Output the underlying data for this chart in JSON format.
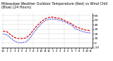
{
  "title": "Milwaukee Weather Outdoor Temperature (Red) vs Wind Chill (Blue) (24 Hours)",
  "title_fontsize": 3.5,
  "bg_color": "#ffffff",
  "grid_color": "#aaaaaa",
  "red_color": "#dd0000",
  "blue_color": "#0000dd",
  "hours": [
    0,
    1,
    2,
    3,
    4,
    5,
    6,
    7,
    8,
    9,
    10,
    11,
    12,
    13,
    14,
    15,
    16,
    17,
    18,
    19,
    20,
    21,
    22,
    23
  ],
  "temp_red": [
    26,
    25,
    18,
    12,
    10,
    10,
    11,
    18,
    29,
    39,
    47,
    53,
    56,
    57,
    55,
    54,
    50,
    46,
    42,
    36,
    33,
    30,
    28,
    27
  ],
  "wind_chill_blue": [
    20,
    18,
    11,
    4,
    1,
    1,
    2,
    10,
    22,
    33,
    42,
    49,
    52,
    53,
    52,
    50,
    47,
    43,
    39,
    31,
    28,
    25,
    23,
    22
  ],
  "ylim_min": -10,
  "ylim_max": 65,
  "yticks": [
    -10,
    0,
    10,
    20,
    30,
    40,
    50,
    60
  ],
  "ytick_labels": [
    "-10",
    "0",
    "10",
    "20",
    "30",
    "40",
    "50",
    "60"
  ],
  "ytick_fontsize": 3.2,
  "xtick_fontsize": 2.8,
  "xlabel_hours": [
    "12",
    "1",
    "2",
    "3",
    "4",
    "5",
    "6",
    "7",
    "8",
    "9",
    "10",
    "11",
    "12",
    "1",
    "2",
    "3",
    "4",
    "5",
    "6",
    "7",
    "8",
    "9",
    "10",
    "11"
  ],
  "line_width": 0.9,
  "grid_linewidth": 0.3,
  "spine_linewidth": 0.5
}
